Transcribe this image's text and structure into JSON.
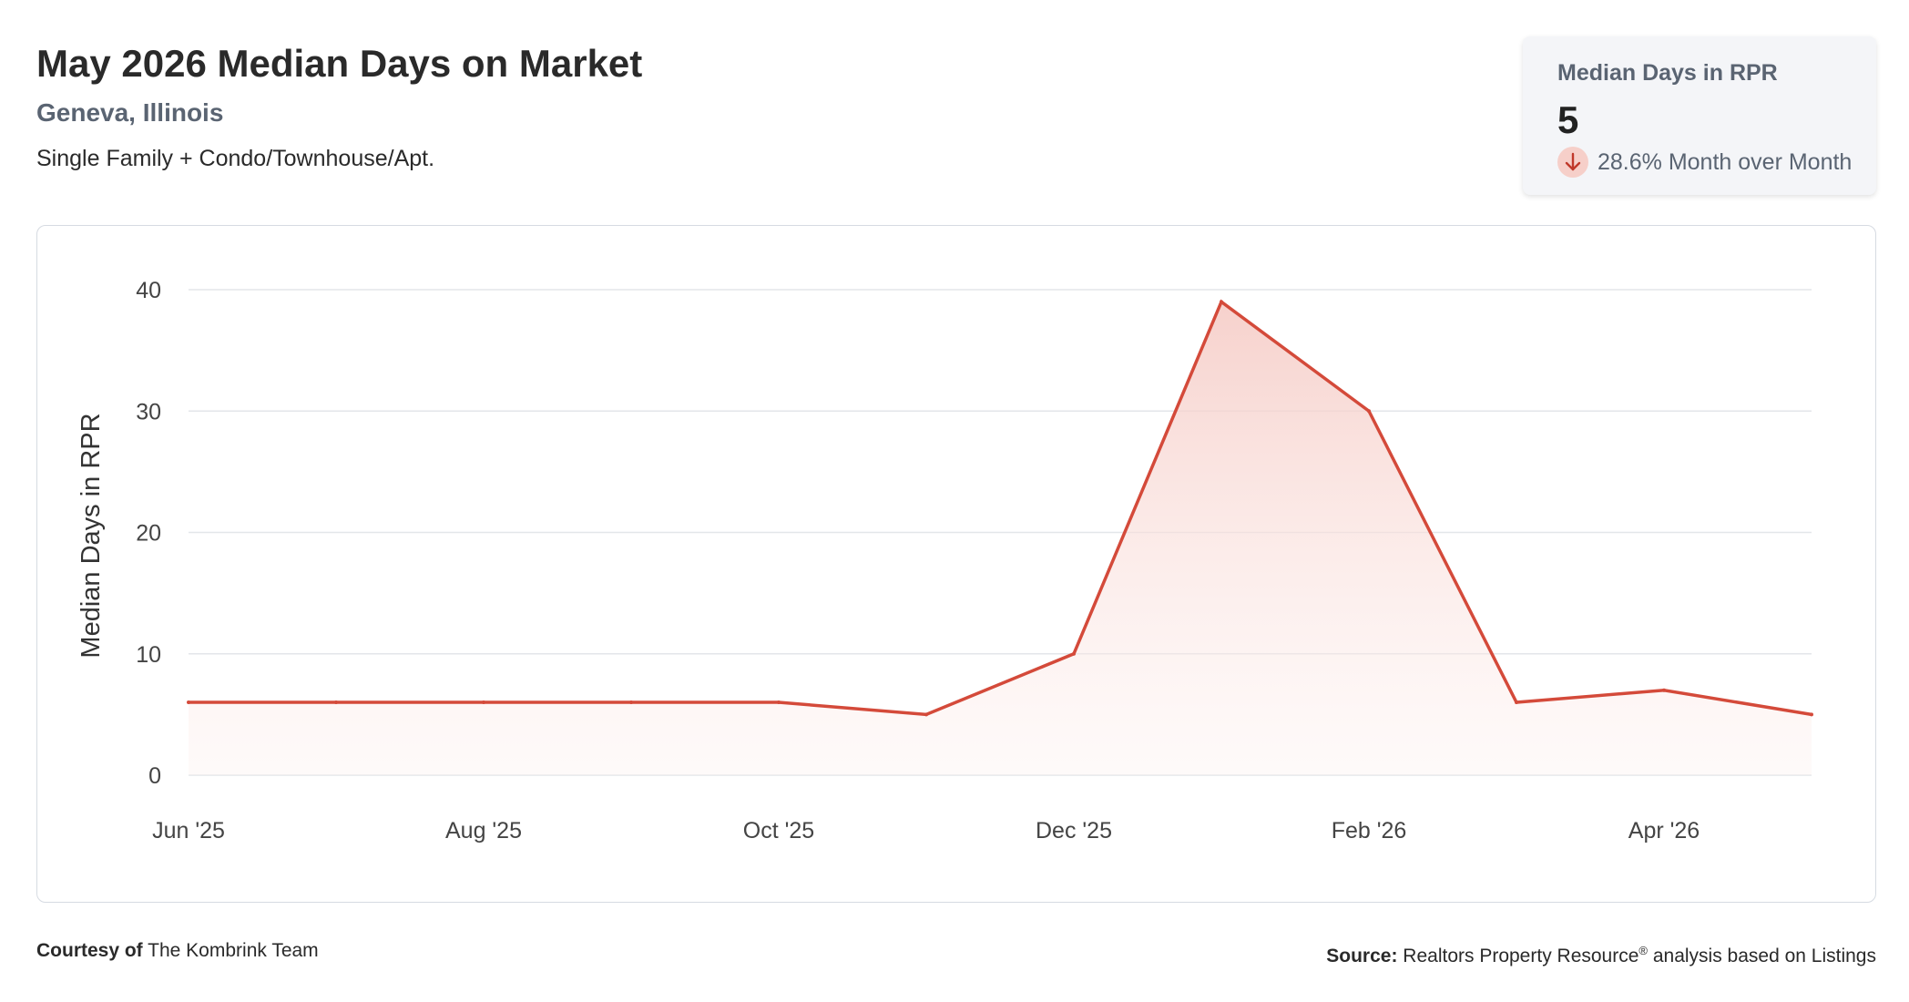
{
  "header": {
    "title": "May 2026 Median Days on Market",
    "location": "Geneva, Illinois",
    "subtitle": "Single Family + Condo/Townhouse/Apt."
  },
  "stat_card": {
    "label": "Median Days in RPR",
    "value": "5",
    "change": "28.6% Month over Month",
    "direction_icon": "arrow-down-icon"
  },
  "footer": {
    "courtesy_label": "Courtesy of",
    "courtesy_name": "The Kombrink Team",
    "source_label": "Source:",
    "source_text_a": "Realtors Property Resource",
    "source_reg": "®",
    "source_text_b": " analysis based on Listings"
  },
  "colors": {
    "line": "#d44a3a",
    "fill_top": "#f5c9c3",
    "grid": "#e3e6ea",
    "card_bg": "#f4f5f8",
    "down_badge": "#f6cfc9"
  },
  "chart_data": {
    "type": "area",
    "ylabel": "Median Days in RPR",
    "xlabel": "",
    "ylim": [
      0,
      40
    ],
    "yticks": [
      0,
      10,
      20,
      30,
      40
    ],
    "x": [
      "Jun '25",
      "Jul '25",
      "Aug '25",
      "Sep '25",
      "Oct '25",
      "Nov '25",
      "Dec '25",
      "Jan '26",
      "Feb '26",
      "Mar '26",
      "Apr '26",
      "May '26"
    ],
    "xtick_labels": [
      "Jun '25",
      "Aug '25",
      "Oct '25",
      "Dec '25",
      "Feb '26",
      "Apr '26"
    ],
    "series": [
      {
        "values": [
          6,
          6,
          6,
          6,
          6,
          5,
          10,
          39,
          30,
          6,
          7,
          5
        ]
      }
    ],
    "grid": true,
    "legend": "none"
  }
}
